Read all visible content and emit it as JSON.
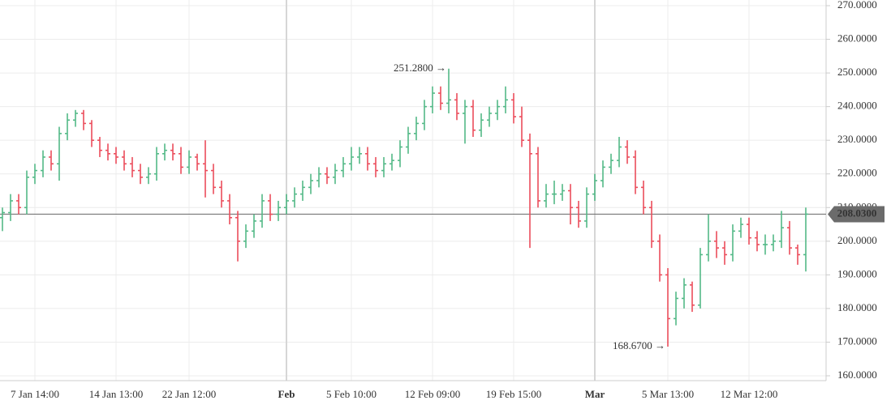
{
  "chart_data": {
    "type": "ohlc",
    "up_color": "#53b987",
    "down_color": "#eb4d5c",
    "grid": true,
    "categories": [
      null,
      null,
      null,
      null,
      "7 Jan 14:00",
      null,
      null,
      null,
      null,
      null,
      null,
      null,
      null,
      null,
      "14 Jan 13:00",
      null,
      null,
      null,
      null,
      null,
      null,
      null,
      null,
      "22 Jan 12:00",
      null,
      null,
      null,
      null,
      null,
      null,
      null,
      null,
      null,
      null,
      null,
      "Feb",
      null,
      null,
      null,
      null,
      null,
      null,
      null,
      "5 Feb 10:00",
      null,
      null,
      null,
      null,
      null,
      null,
      null,
      null,
      null,
      "12 Feb 09:00",
      null,
      null,
      null,
      null,
      null,
      null,
      null,
      null,
      null,
      "19 Feb 15:00",
      null,
      null,
      null,
      null,
      null,
      null,
      null,
      null,
      null,
      "Mar",
      null,
      null,
      null,
      null,
      null,
      null,
      null,
      null,
      "5 Mar 13:00",
      null,
      null,
      null,
      null,
      null,
      null,
      null,
      null,
      null,
      "12 Mar 12:00",
      null,
      null,
      null,
      null,
      null,
      null,
      null
    ],
    "open": [
      207,
      208.5,
      212,
      210,
      219,
      221,
      225,
      223,
      232,
      236,
      238,
      235,
      230,
      227,
      226,
      225,
      223,
      221,
      219,
      220,
      226,
      227,
      226,
      222,
      225,
      223,
      221,
      216,
      212,
      207,
      200,
      203,
      206,
      212,
      208,
      210,
      212,
      214,
      216,
      218,
      220,
      219,
      221,
      223,
      225,
      226,
      223,
      221,
      223,
      224,
      228,
      232,
      235,
      240,
      244,
      241,
      242,
      238,
      240,
      233,
      236,
      238,
      240,
      242,
      237,
      230,
      226,
      212,
      214,
      214,
      215,
      210,
      206,
      214,
      218,
      222,
      224,
      228,
      225,
      216,
      210,
      200,
      190,
      177,
      183,
      187,
      181,
      196,
      200,
      198,
      196,
      203,
      205,
      201,
      199,
      199,
      200,
      204,
      198,
      196
    ],
    "high": [
      210,
      214,
      214,
      221,
      223,
      227,
      227,
      234,
      238,
      239,
      239,
      236,
      231,
      229,
      228,
      227,
      225,
      223,
      222,
      228,
      229,
      229,
      228,
      227,
      226,
      230,
      223,
      218,
      214,
      209,
      205,
      208,
      214,
      214,
      212,
      214,
      216,
      218,
      220,
      222,
      222,
      223,
      225,
      228,
      228,
      228,
      225,
      225,
      226,
      230,
      234,
      237,
      242,
      246,
      246,
      251.28,
      244,
      242,
      242,
      238,
      240,
      242,
      246,
      244,
      240,
      232,
      228,
      217,
      218,
      217,
      217,
      212,
      216,
      220,
      224,
      226,
      231,
      230,
      227,
      218,
      212,
      202,
      192,
      185,
      189,
      188,
      198,
      208,
      203,
      200,
      205,
      207,
      207,
      203,
      202,
      202,
      209,
      206,
      199,
      210
    ],
    "low": [
      203,
      206,
      208,
      208,
      217,
      219,
      221,
      218,
      230,
      234,
      233,
      228,
      225,
      224,
      223,
      221,
      219,
      217,
      217,
      218,
      224,
      224,
      220,
      220,
      221,
      213,
      214,
      210,
      205,
      194,
      198,
      201,
      204,
      206,
      206,
      208,
      210,
      212,
      214,
      216,
      217,
      217,
      219,
      221,
      223,
      221,
      219,
      219,
      221,
      222,
      226,
      230,
      233,
      238,
      239,
      238,
      236,
      229,
      231,
      231,
      234,
      236,
      238,
      235,
      228,
      198,
      210,
      210,
      211,
      212,
      205,
      204,
      204,
      212,
      216,
      220,
      222,
      223,
      214,
      208,
      198,
      188,
      168.67,
      175,
      180,
      179,
      180,
      194,
      195,
      193,
      194,
      201,
      199,
      197,
      196,
      197,
      198,
      196,
      193,
      191
    ],
    "close": [
      208.5,
      212,
      210,
      219,
      221,
      225,
      223,
      232,
      236,
      238,
      235,
      230,
      227,
      226,
      225,
      223,
      221,
      219,
      220,
      226,
      227,
      226,
      222,
      225,
      223,
      221,
      216,
      212,
      207,
      200,
      203,
      206,
      212,
      208,
      210,
      212,
      214,
      216,
      218,
      220,
      219,
      221,
      223,
      225,
      226,
      223,
      221,
      223,
      224,
      228,
      232,
      235,
      240,
      244,
      241,
      242,
      238,
      240,
      233,
      236,
      238,
      240,
      242,
      237,
      230,
      226,
      212,
      214,
      214,
      215,
      210,
      206,
      214,
      218,
      222,
      224,
      228,
      225,
      216,
      210,
      200,
      190,
      177,
      183,
      187,
      181,
      196,
      200,
      198,
      196,
      203,
      205,
      201,
      199,
      199,
      200,
      204,
      198,
      196,
      208.03
    ],
    "ylim": [
      160,
      270
    ],
    "yticks": [
      {
        "value": 160,
        "label": "160.0000"
      },
      {
        "value": 170,
        "label": "170.0000"
      },
      {
        "value": 180,
        "label": "180.0000"
      },
      {
        "value": 190,
        "label": "190.0000"
      },
      {
        "value": 200,
        "label": "200.0000"
      },
      {
        "value": 210,
        "label": "210.0000"
      },
      {
        "value": 220,
        "label": "220.0000"
      },
      {
        "value": 230,
        "label": "230.0000"
      },
      {
        "value": 240,
        "label": "240.0000"
      },
      {
        "value": 250,
        "label": "250.0000"
      },
      {
        "value": 260,
        "label": "260.0000"
      },
      {
        "value": 270,
        "label": "270.0000"
      }
    ],
    "current_price": {
      "value": 208.03,
      "label": "208.0300"
    },
    "annotations": [
      {
        "value": 251.28,
        "label": "251.2800 →",
        "series": "high"
      },
      {
        "value": 168.67,
        "label": "168.6700 →",
        "series": "low"
      }
    ]
  }
}
